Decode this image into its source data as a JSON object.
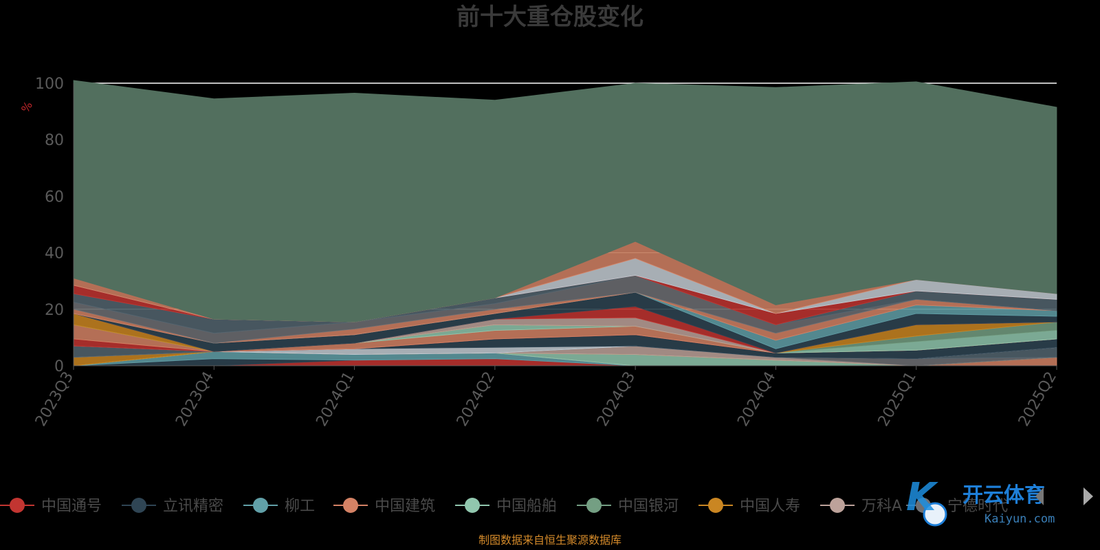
{
  "chart_data": {
    "type": "area",
    "title": "前十大重仓股变化",
    "ylabel": "%",
    "ylim": [
      0,
      100
    ],
    "yticks": [
      0,
      20,
      40,
      60,
      80,
      100
    ],
    "grid": true,
    "categories": [
      "2023Q3",
      "2023Q4",
      "2024Q1",
      "2024Q2",
      "2024Q3",
      "2024Q4",
      "2025Q1",
      "2025Q2"
    ],
    "series": [
      {
        "name": "中国通号",
        "color": "#c23531",
        "values": [
          0,
          0,
          2,
          2.5,
          0,
          0,
          0,
          0
        ]
      },
      {
        "name": "立讯精密",
        "color": "#2f4554",
        "values": [
          0,
          2.5,
          0,
          0,
          0,
          0,
          0,
          0
        ]
      },
      {
        "name": "柳工",
        "color": "#61a0a8",
        "values": [
          0,
          2.5,
          2,
          2,
          0,
          0,
          0,
          0
        ]
      },
      {
        "name": "中国建筑",
        "color": "#d48265",
        "values": [
          0,
          0,
          0,
          0,
          0,
          0,
          0,
          3
        ]
      },
      {
        "name": "中国船舶",
        "color": "#91c7ae",
        "values": [
          0,
          0,
          0,
          0,
          4,
          2,
          0,
          0
        ]
      },
      {
        "name": "中国银河",
        "color": "#749f83",
        "values": [
          0,
          0,
          0,
          0,
          0,
          0,
          0,
          0
        ]
      },
      {
        "name": "中国人寿",
        "color": "#ca8622",
        "values": [
          3,
          0,
          0,
          0,
          0,
          0,
          0,
          0
        ]
      },
      {
        "name": "万科A",
        "color": "#bda29a",
        "values": [
          0,
          0,
          0,
          0,
          3,
          1,
          0,
          0
        ]
      },
      {
        "name": "",
        "color": "#6e7074",
        "values": [
          0,
          0,
          0,
          0,
          0,
          0,
          2.5,
          0
        ]
      },
      {
        "name": "",
        "color": "#546570",
        "values": [
          4,
          0,
          0,
          0,
          0,
          0,
          0,
          3.5
        ]
      },
      {
        "name": "",
        "color": "#c4ccd3",
        "values": [
          0,
          0,
          2,
          2,
          0,
          0,
          0,
          0
        ]
      },
      {
        "name": "",
        "color": "#2f4554",
        "values": [
          0,
          0,
          0,
          3,
          4,
          1.5,
          3,
          3
        ]
      },
      {
        "name": "",
        "color": "#c23531",
        "values": [
          2.5,
          0,
          0,
          0,
          0,
          0,
          0,
          0
        ]
      },
      {
        "name": "",
        "color": "#d48265",
        "values": [
          5,
          0,
          2,
          3,
          3,
          0,
          0,
          0
        ]
      },
      {
        "name": "",
        "color": "#91c7ae",
        "values": [
          0,
          0,
          0,
          2,
          0,
          0,
          3,
          3
        ]
      },
      {
        "name": "",
        "color": "#749f83",
        "values": [
          0,
          0,
          0,
          0,
          0,
          0,
          2,
          3
        ]
      },
      {
        "name": "",
        "color": "#ca8622",
        "values": [
          4,
          0,
          0,
          0,
          0,
          0,
          4,
          0
        ]
      },
      {
        "name": "",
        "color": "#bda29a",
        "values": [
          0,
          0,
          0,
          2,
          3,
          0,
          0,
          0
        ]
      },
      {
        "name": "",
        "color": "#c23531",
        "values": [
          0,
          0,
          0,
          0,
          4,
          0,
          0,
          0
        ]
      },
      {
        "name": "",
        "color": "#2f4554",
        "values": [
          0,
          3,
          3,
          2,
          5,
          1.5,
          4,
          2
        ]
      },
      {
        "name": "",
        "color": "#61a0a8",
        "values": [
          0,
          0,
          0,
          0,
          0,
          3,
          3,
          2
        ]
      },
      {
        "name": "",
        "color": "#d48265",
        "values": [
          1.5,
          0,
          2,
          1.5,
          0,
          2.5,
          2,
          0
        ]
      },
      {
        "name": "",
        "color": "#6e7074",
        "values": [
          2.5,
          3.5,
          2.5,
          2,
          6,
          3,
          0,
          0
        ]
      },
      {
        "name": "",
        "color": "#546570",
        "values": [
          3,
          5,
          0,
          2,
          0,
          0,
          3,
          4
        ]
      },
      {
        "name": "",
        "color": "#c23531",
        "values": [
          3,
          0,
          0,
          0,
          0,
          4,
          0,
          0
        ]
      },
      {
        "name": "",
        "color": "#c4ccd3",
        "values": [
          0,
          0,
          0,
          0,
          6,
          0,
          4,
          2
        ]
      },
      {
        "name": "",
        "color": "#d48265",
        "values": [
          2.5,
          0,
          0,
          0,
          6,
          3,
          0,
          0
        ]
      },
      {
        "name": "",
        "color": "#526f5e",
        "values": [
          70,
          78,
          81,
          70,
          56,
          77,
          70,
          66
        ]
      }
    ]
  },
  "legend": {
    "items": [
      {
        "label": "中国通号",
        "color": "#c23531"
      },
      {
        "label": "立讯精密",
        "color": "#2f4554"
      },
      {
        "label": "柳工",
        "color": "#61a0a8"
      },
      {
        "label": "中国建筑",
        "color": "#d48265"
      },
      {
        "label": "中国船舶",
        "color": "#91c7ae"
      },
      {
        "label": "中国银河",
        "color": "#749f83"
      },
      {
        "label": "中国人寿",
        "color": "#ca8622"
      },
      {
        "label": "万科A",
        "color": "#bda29a"
      },
      {
        "label": "宁德时代",
        "color": "#6e7074"
      }
    ],
    "nav_prev_icon": "left-arrow",
    "nav_next_icon": "right-arrow"
  },
  "source_note": "制图数据来自恒生聚源数据库",
  "watermark": {
    "cn": "开云体育",
    "en": "Kaiyun.com"
  }
}
